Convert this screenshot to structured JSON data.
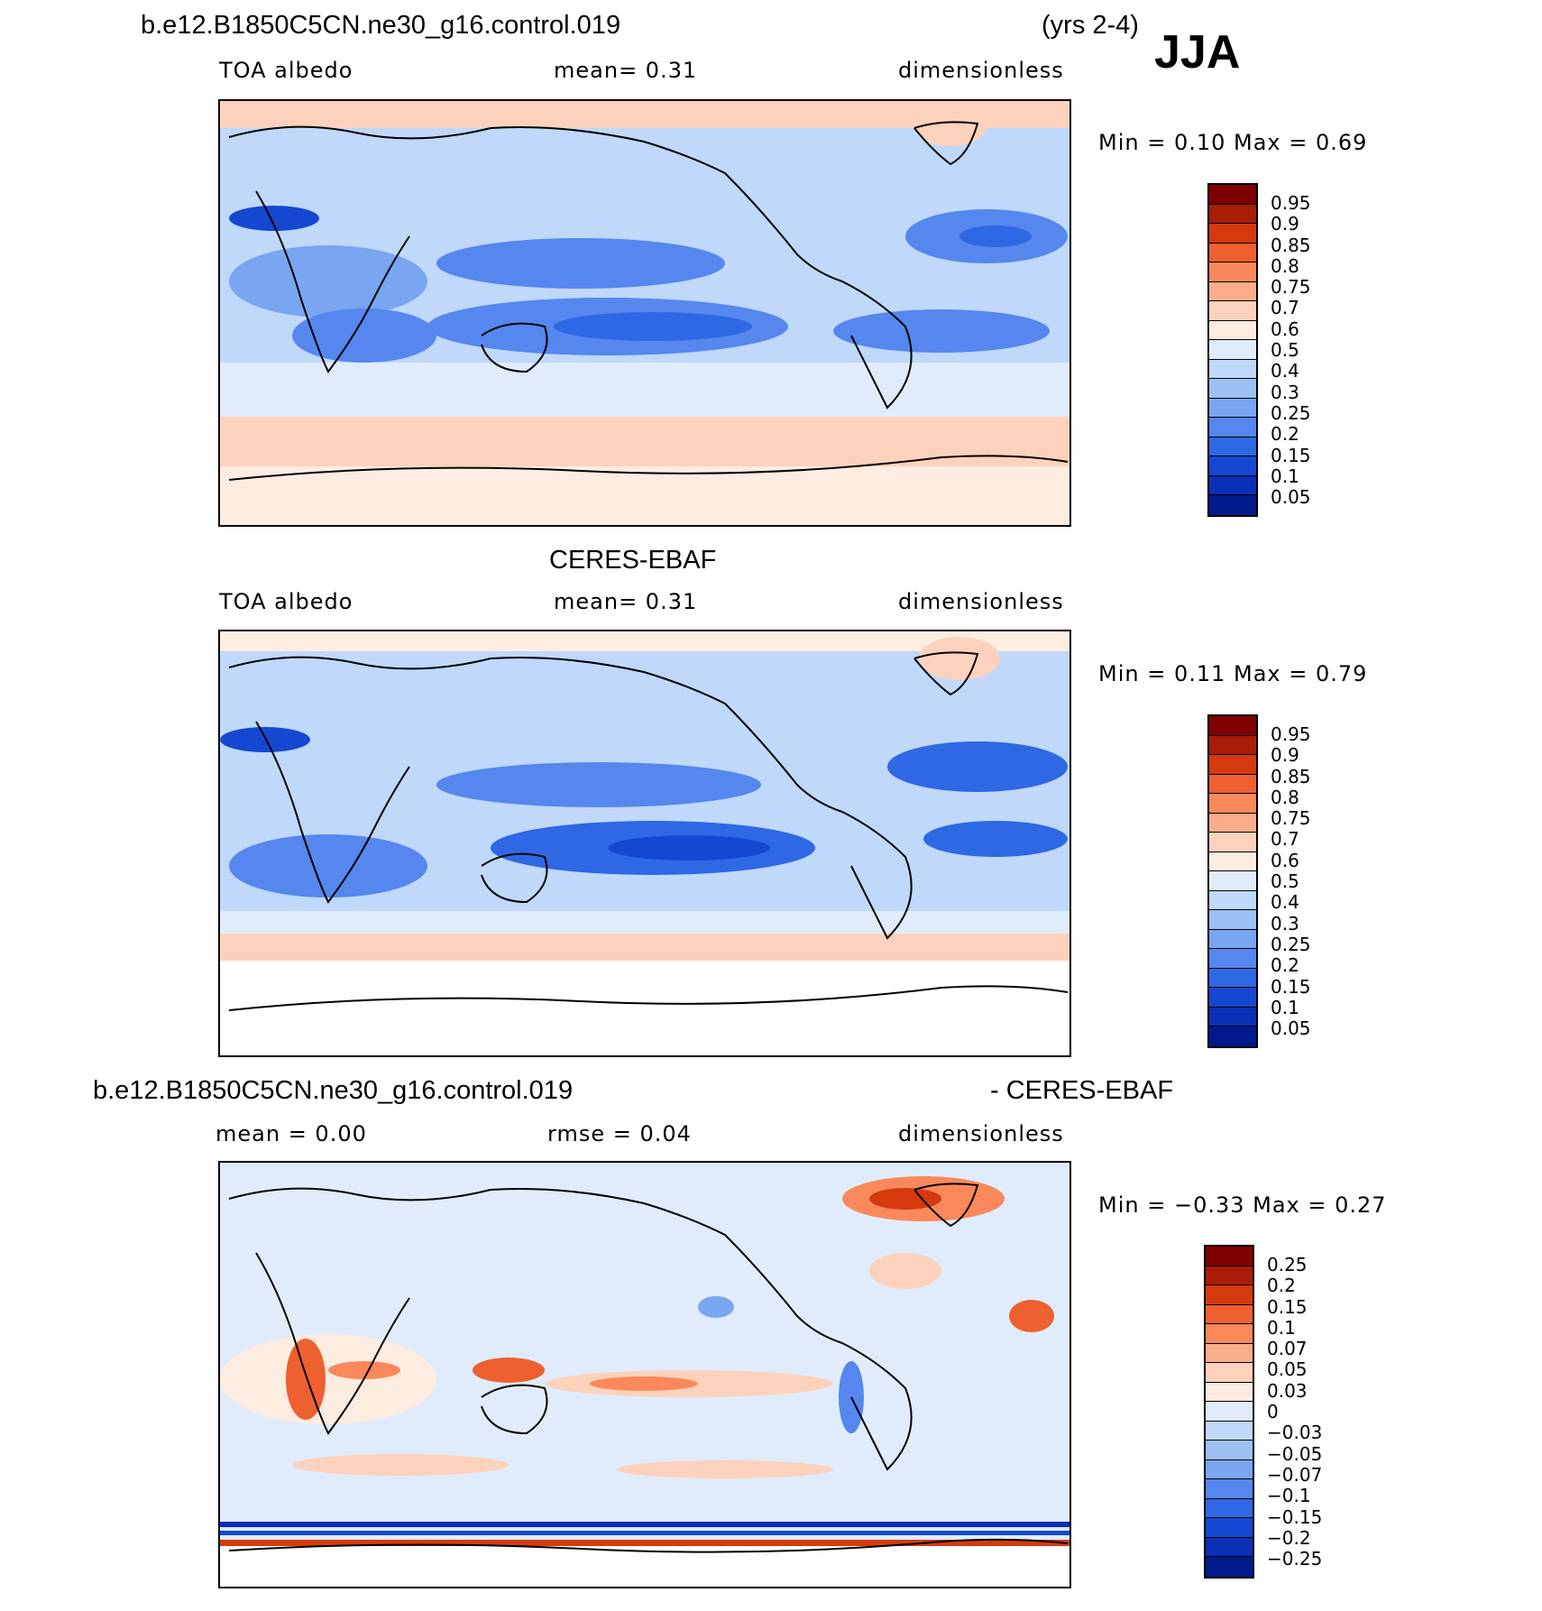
{
  "season": "JJA",
  "panels": [
    {
      "id": "model",
      "title_left": "b.e12.B1850C5CN.ne30_g16.control.019",
      "title_right": "(yrs 2-4)",
      "var_name": "TOA albedo",
      "stat1": "mean=    0.31",
      "units": "dimensionless",
      "minmax": "Min =     0.10  Max =     0.69",
      "colorbar": {
        "colors": [
          "#7f0000",
          "#a81c08",
          "#d43a0e",
          "#ee6030",
          "#f9895a",
          "#f9ad8a",
          "#fcd2bc",
          "#fdece0",
          "#e0ecfb",
          "#c0d8f9",
          "#9dc0f5",
          "#7aa5f0",
          "#5587ee",
          "#2f68e4",
          "#1548d0",
          "#0b2fb5",
          "#001a8c"
        ],
        "labels": [
          "0.95",
          "0.9",
          "0.85",
          "0.8",
          "0.75",
          "0.7",
          "0.6",
          "0.5",
          "0.4",
          "0.3",
          "0.25",
          "0.2",
          "0.15",
          "0.1",
          "0.05"
        ]
      }
    },
    {
      "id": "obs",
      "title_center": "CERES-EBAF",
      "var_name": "TOA albedo",
      "stat1": "mean=    0.31",
      "units": "dimensionless",
      "minmax": "Min =     0.11  Max =     0.79",
      "colorbar": {
        "colors": [
          "#7f0000",
          "#a81c08",
          "#d43a0e",
          "#ee6030",
          "#f9895a",
          "#f9ad8a",
          "#fcd2bc",
          "#fdece0",
          "#e0ecfb",
          "#c0d8f9",
          "#9dc0f5",
          "#7aa5f0",
          "#5587ee",
          "#2f68e4",
          "#1548d0",
          "#0b2fb5",
          "#001a8c"
        ],
        "labels": [
          "0.95",
          "0.9",
          "0.85",
          "0.8",
          "0.75",
          "0.7",
          "0.6",
          "0.5",
          "0.4",
          "0.3",
          "0.25",
          "0.2",
          "0.15",
          "0.1",
          "0.05"
        ]
      }
    },
    {
      "id": "diff",
      "title_left": "b.e12.B1850C5CN.ne30_g16.control.019",
      "title_right": "- CERES-EBAF",
      "stat1": "mean =    0.00",
      "stat2": "rmse =    0.04",
      "units": "dimensionless",
      "minmax": "Min =   −0.33  Max =     0.27",
      "colorbar": {
        "colors": [
          "#7f0000",
          "#a81c08",
          "#d43a0e",
          "#ee6030",
          "#f9895a",
          "#f9ad8a",
          "#fcd2bc",
          "#fdece0",
          "#e0ecfb",
          "#c0d8f9",
          "#9dc0f5",
          "#7aa5f0",
          "#5587ee",
          "#2f68e4",
          "#1548d0",
          "#0b2fb5",
          "#001a8c"
        ],
        "labels": [
          "0.25",
          "0.2",
          "0.15",
          "0.1",
          "0.07",
          "0.05",
          "0.03",
          "0",
          "−0.03",
          "−0.05",
          "−0.07",
          "−0.1",
          "−0.15",
          "−0.2",
          "−0.25"
        ]
      }
    }
  ]
}
